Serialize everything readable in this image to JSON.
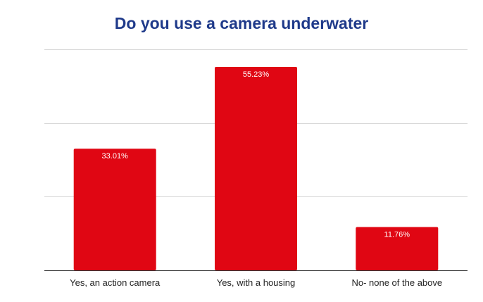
{
  "chart_data": {
    "type": "bar",
    "title": "Do you use a camera underwater",
    "categories": [
      "Yes, an action camera",
      "Yes, with a housing",
      "No- none of the above"
    ],
    "values": [
      33.01,
      55.23,
      11.76
    ],
    "data_labels": [
      "33.01%",
      "55.23%",
      "11.76%"
    ],
    "ylim": [
      0,
      60
    ],
    "grid": true,
    "legend": "none",
    "xlabel": "",
    "ylabel": "",
    "colors": {
      "bar": "#e00613",
      "grid": "#d9d9d9",
      "baseline": "#333333",
      "title": "#1f3a8a"
    }
  }
}
